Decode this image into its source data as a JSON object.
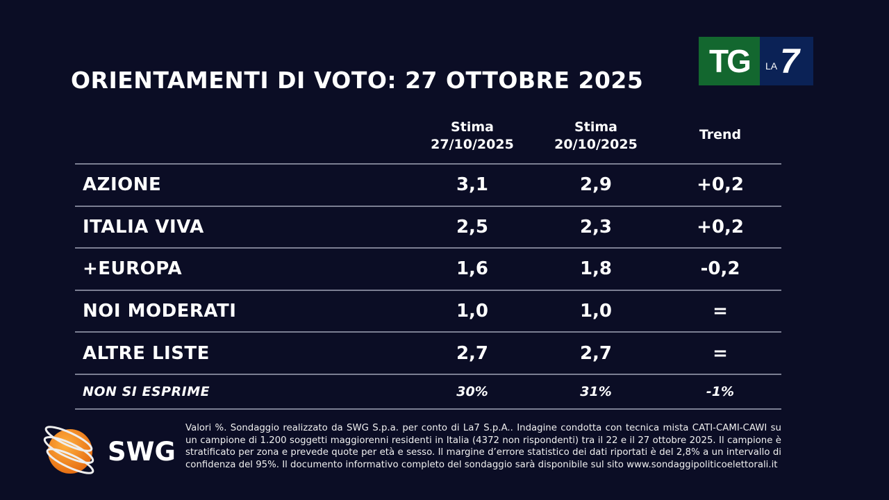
{
  "title": "ORIENTAMENTI DI VOTO: 27 OTTOBRE 2025",
  "brand": {
    "tg": "TG",
    "la": "LA",
    "seven": "7",
    "green": "#13672f",
    "navy": "#0b2256"
  },
  "table": {
    "headers": [
      {
        "l1": "Stima",
        "l2": "27/10/2025"
      },
      {
        "l1": "Stima",
        "l2": "20/10/2025"
      },
      {
        "l1": "Trend",
        "l2": ""
      }
    ],
    "rows": [
      {
        "name": "AZIONE",
        "a": "3,1",
        "b": "2,9",
        "t": "+0,2"
      },
      {
        "name": "ITALIA VIVA",
        "a": "2,5",
        "b": "2,3",
        "t": "+0,2"
      },
      {
        "name": "+EUROPA",
        "a": "1,6",
        "b": "1,8",
        "t": "-0,2"
      },
      {
        "name": "NOI MODERATI",
        "a": "1,0",
        "b": "1,0",
        "t": "="
      },
      {
        "name": "ALTRE LISTE",
        "a": "2,7",
        "b": "2,7",
        "t": "="
      },
      {
        "name": "NON SI ESPRIME",
        "a": "30%",
        "b": "31%",
        "t": "-1%"
      }
    ]
  },
  "swg": {
    "word": "SWG"
  },
  "footnote": "Valori %. Sondaggio realizzato da SWG S.p.a. per conto di La7 S.p.A.. Indagine condotta con tecnica mista CATI-CAMI-CAWI su un campione di 1.200 soggetti maggiorenni residenti in Italia (4372 non rispondenti) tra il 22 e il 27 ottobre 2025. Il campione è stratificato per zona e prevede quote per età e sesso. Il margine d’errore statistico dei dati riportati è del 2,8% a un intervallo di confidenza del 95%. Il documento informativo completo del sondaggio sarà disponibile sul sito www.sondaggipoliticoelettorali.it"
}
